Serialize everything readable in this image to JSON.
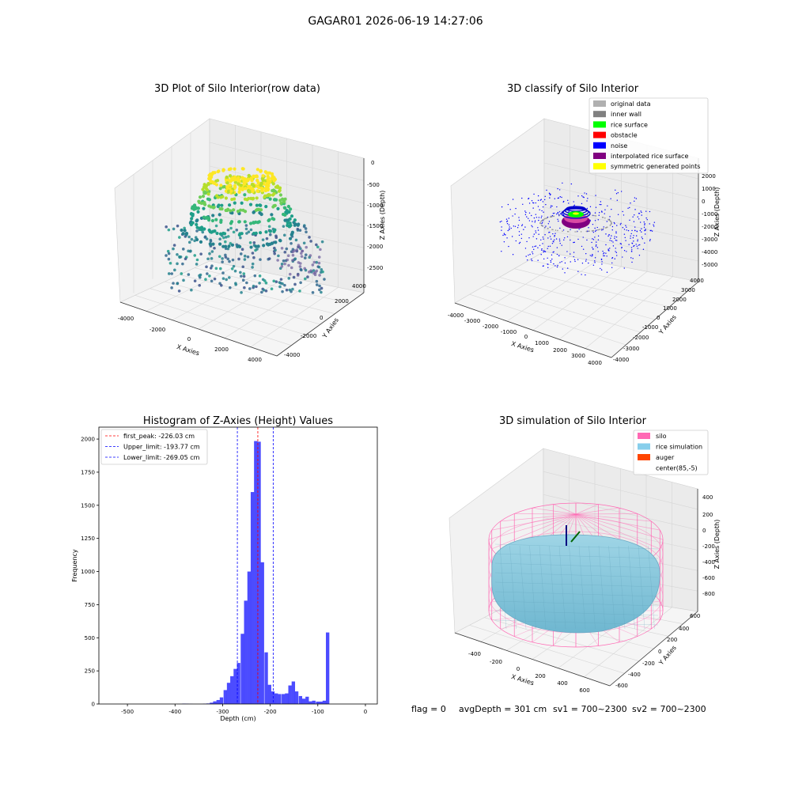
{
  "figure": {
    "suptitle": "GAGAR01 2026-06-19 14:27:06",
    "footer": {
      "flag": "flag = 0",
      "avg_depth": "avgDepth = 301 cm",
      "sv1": "sv1 = 700~2300",
      "sv2": "sv2 = 700~2300"
    }
  },
  "chart_data": [
    {
      "type": "scatter",
      "projection": "3d",
      "title": "3D Plot of Silo Interior(row data)",
      "xlabel": "X Axies",
      "ylabel": "Y Axies",
      "zlabel": "Z Axies (Depth)",
      "x_ticks": [
        "-4000",
        "-2000",
        "0",
        "2000",
        "4000"
      ],
      "y_ticks": [
        "-4000",
        "-2000",
        "0",
        "2000",
        "4000"
      ],
      "z_ticks": [
        "0",
        "-500",
        "-1000",
        "-1500",
        "-2000",
        "-2500"
      ],
      "colormap": "viridis",
      "grid": true
    },
    {
      "type": "scatter",
      "projection": "3d",
      "title": "3D classify of Silo Interior",
      "xlabel": "X Axies",
      "ylabel": "Y Axies",
      "zlabel": "Z Axies (Depth)",
      "x_ticks": [
        "-4000",
        "-3000",
        "-2000",
        "-1000",
        "0",
        "1000",
        "2000",
        "3000",
        "4000"
      ],
      "y_ticks": [
        "4000",
        "3000",
        "2000",
        "1000",
        "0",
        "-1000",
        "-2000",
        "-3000",
        "-4000"
      ],
      "z_ticks": [
        "2000",
        "1000",
        "0",
        "-1000",
        "-2000",
        "-3000",
        "-4000",
        "-5000"
      ],
      "legend": [
        {
          "label": "original data",
          "color": "#b0b0b0"
        },
        {
          "label": "inner wall",
          "color": "#808080"
        },
        {
          "label": "rice surface",
          "color": "#00ff00"
        },
        {
          "label": "obstacle",
          "color": "#ff0000"
        },
        {
          "label": "noise",
          "color": "#0000ff"
        },
        {
          "label": "interpolated rice surface",
          "color": "#800080"
        },
        {
          "label": "symmetric generated points",
          "color": "#ffff00"
        }
      ],
      "legend_loc": "upper right",
      "grid": true
    },
    {
      "type": "bar",
      "title": "Histogram of Z-Axies (Height) Values",
      "xlabel": "Depth (cm)",
      "ylabel": "Frequency",
      "xlim": [
        -560,
        25
      ],
      "ylim": [
        0,
        2090
      ],
      "x_ticks": [
        -500,
        -400,
        -300,
        -200,
        -100,
        0
      ],
      "y_ticks": [
        0,
        250,
        500,
        750,
        1000,
        1250,
        1500,
        1750,
        2000
      ],
      "bin_width": 7.2,
      "bins": [
        [
          -385,
          3
        ],
        [
          -378,
          2
        ],
        [
          -370,
          1
        ],
        [
          -341,
          2
        ],
        [
          -334,
          4
        ],
        [
          -327,
          10
        ],
        [
          -320,
          20
        ],
        [
          -313,
          30
        ],
        [
          -306,
          50
        ],
        [
          -298,
          105
        ],
        [
          -291,
          160
        ],
        [
          -284,
          210
        ],
        [
          -277,
          265
        ],
        [
          -270,
          310
        ],
        [
          -262,
          530
        ],
        [
          -255,
          780
        ],
        [
          -248,
          1000
        ],
        [
          -241,
          1600
        ],
        [
          -234,
          1985
        ],
        [
          -227,
          1980
        ],
        [
          -220,
          1070
        ],
        [
          -212,
          390
        ],
        [
          -205,
          145
        ],
        [
          -198,
          95
        ],
        [
          -191,
          80
        ],
        [
          -184,
          75
        ],
        [
          -176,
          75
        ],
        [
          -169,
          80
        ],
        [
          -162,
          140
        ],
        [
          -155,
          170
        ],
        [
          -148,
          95
        ],
        [
          -140,
          60
        ],
        [
          -133,
          40
        ],
        [
          -126,
          55
        ],
        [
          -119,
          20
        ],
        [
          -112,
          25
        ],
        [
          -104,
          18
        ],
        [
          -97,
          18
        ],
        [
          -90,
          25
        ],
        [
          -83,
          540
        ]
      ],
      "bar_color": "#0000ff",
      "vlines": [
        {
          "label": "first_peak: -226.03 cm",
          "x": -226.03,
          "color": "#ff0000"
        },
        {
          "label": "Upper_limit: -193.77 cm",
          "x": -193.77,
          "color": "#0000ff"
        },
        {
          "label": "Lower_limit: -269.05 cm",
          "x": -269.05,
          "color": "#0000ff"
        }
      ],
      "legend_loc": "upper left"
    },
    {
      "type": "surface",
      "projection": "3d",
      "title": "3D simulation of Silo Interior",
      "xlabel": "X Axies",
      "ylabel": "Y Axies",
      "zlabel": "Z Axies (Depth)",
      "x_ticks": [
        "-400",
        "-200",
        "0",
        "200",
        "400",
        "600"
      ],
      "y_ticks": [
        "600",
        "400",
        "200",
        "0",
        "-200",
        "-400",
        "-600"
      ],
      "z_ticks": [
        "400",
        "200",
        "0",
        "-200",
        "-400",
        "-600",
        "-800"
      ],
      "legend": [
        {
          "label": "silo",
          "color": "#ff69b4"
        },
        {
          "label": "rice simulation",
          "color": "#87ceeb"
        },
        {
          "label": "auger",
          "color": "#ff4500"
        },
        {
          "label": "center(85,-5)",
          "color": "#ffffff"
        }
      ],
      "legend_loc": "upper right"
    }
  ]
}
